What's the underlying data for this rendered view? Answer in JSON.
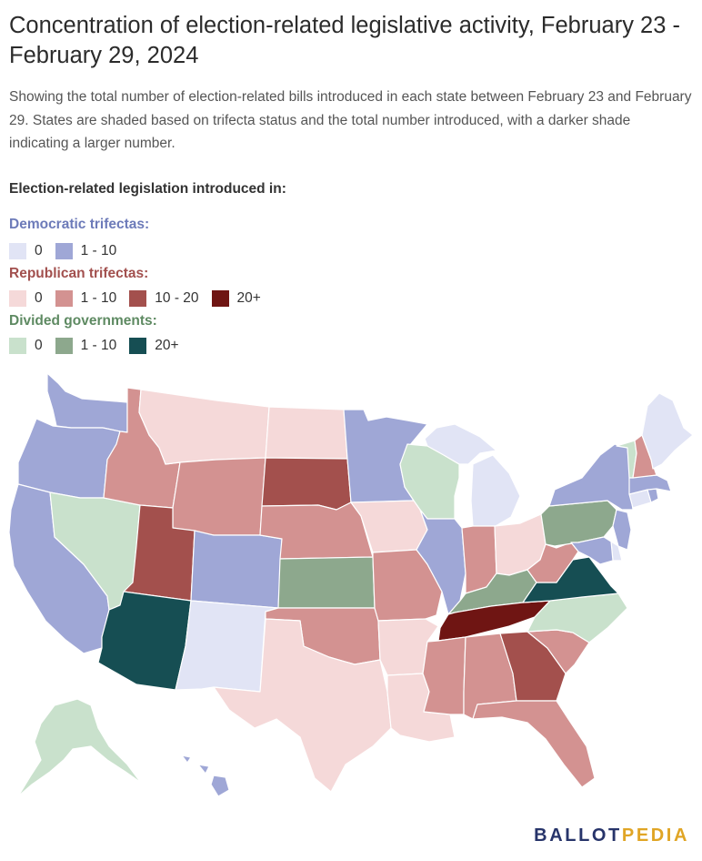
{
  "title": "Concentration of election-related legislative activity, February 23 - February 29, 2024",
  "subtitle": "Showing the total number of election-related bills introduced in each state between February 23 and February 29. States are shaded based on trifecta status and the total number introduced, with a darker shade indicating a larger number.",
  "legend": {
    "heading": "Election-related legislation introduced in:",
    "groups": [
      {
        "title": "Democratic trifectas:",
        "color": "#6d7bb9",
        "items": [
          {
            "label": "0",
            "color": "#e1e4f5"
          },
          {
            "label": "1 - 10",
            "color": "#9fa7d6"
          }
        ]
      },
      {
        "title": "Republican trifectas:",
        "color": "#a2504e",
        "items": [
          {
            "label": "0",
            "color": "#f5d9d9"
          },
          {
            "label": "1 - 10",
            "color": "#d39291"
          },
          {
            "label": "10 - 20",
            "color": "#a3504d"
          },
          {
            "label": "20+",
            "color": "#6f1513"
          }
        ]
      },
      {
        "title": "Divided governments:",
        "color": "#5e8a62",
        "items": [
          {
            "label": "0",
            "color": "#c9e1cc"
          },
          {
            "label": "1 - 10",
            "color": "#8da88d"
          },
          {
            "label": "20+",
            "color": "#164e53"
          }
        ]
      }
    ]
  },
  "state_categories": {
    "WA": "dem_1_10",
    "OR": "dem_1_10",
    "CA": "dem_1_10",
    "NV": "div_0",
    "ID": "rep_1_10",
    "MT": "rep_0",
    "WY": "rep_1_10",
    "UT": "rep_10_20",
    "AZ": "div_20",
    "CO": "dem_1_10",
    "NM": "dem_0",
    "ND": "rep_0",
    "SD": "rep_10_20",
    "NE": "rep_1_10",
    "KS": "div_1_10",
    "OK": "rep_1_10",
    "TX": "rep_0",
    "MN": "dem_1_10",
    "IA": "rep_0",
    "MO": "rep_1_10",
    "AR": "rep_0",
    "LA": "rep_0",
    "WI": "div_0",
    "IL": "dem_1_10",
    "MI": "dem_0",
    "IN": "rep_1_10",
    "OH": "rep_0",
    "KY": "div_1_10",
    "TN": "rep_20",
    "MS": "rep_1_10",
    "AL": "rep_1_10",
    "GA": "rep_10_20",
    "FL": "rep_1_10",
    "SC": "rep_1_10",
    "NC": "div_0",
    "VA": "div_20",
    "WV": "rep_1_10",
    "PA": "div_1_10",
    "NY": "dem_1_10",
    "NJ": "dem_1_10",
    "DE": "dem_0",
    "MD": "dem_1_10",
    "CT": "dem_0",
    "RI": "dem_1_10",
    "MA": "dem_1_10",
    "VT": "div_0",
    "NH": "rep_1_10",
    "ME": "dem_0",
    "AK": "div_0",
    "HI": "dem_1_10"
  },
  "category_colors": {
    "dem_0": "#e1e4f5",
    "dem_1_10": "#9fa7d6",
    "rep_0": "#f5d9d9",
    "rep_1_10": "#d39291",
    "rep_10_20": "#a3504d",
    "rep_20": "#6f1513",
    "div_0": "#c9e1cc",
    "div_1_10": "#8da88d",
    "div_20": "#164e53"
  },
  "brand": {
    "main": "BALLOT",
    "accent": "PEDIA"
  }
}
